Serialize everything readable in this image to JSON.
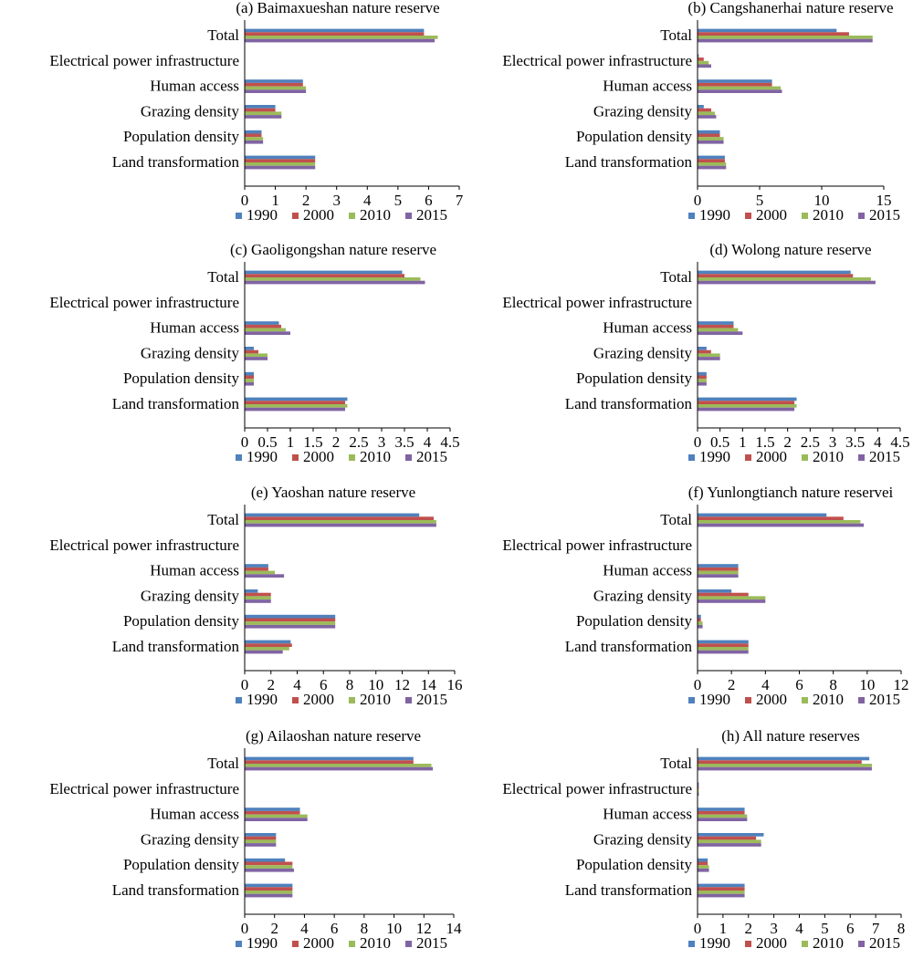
{
  "series_colors": [
    "#4F81BD",
    "#C0504D",
    "#9BBB59",
    "#8064A2"
  ],
  "chart_data": [
    {
      "type": "bar",
      "orientation": "horizontal",
      "title": "(a) Baimaxueshan nature reserve",
      "categories": [
        "Total",
        "Electrical power infrastructure",
        "Human access",
        "Grazing density",
        "Population density",
        "Land transformation"
      ],
      "series": [
        {
          "name": "1990",
          "values": [
            5.85,
            0,
            1.9,
            1.0,
            0.55,
            2.3
          ]
        },
        {
          "name": "2000",
          "values": [
            5.85,
            0,
            1.9,
            1.0,
            0.55,
            2.3
          ]
        },
        {
          "name": "2010",
          "values": [
            6.3,
            0,
            2.0,
            1.2,
            0.6,
            2.3
          ]
        },
        {
          "name": "2015",
          "values": [
            6.2,
            0,
            2.0,
            1.2,
            0.6,
            2.3
          ]
        }
      ],
      "xlim": [
        0,
        7
      ],
      "ticks": [
        0,
        1,
        2,
        3,
        4,
        5,
        6,
        7
      ],
      "tick_labels": [
        "0",
        "1",
        "2",
        "3",
        "4",
        "5",
        "6",
        "7"
      ]
    },
    {
      "type": "bar",
      "orientation": "horizontal",
      "title": "(b) Cangshanerhai nature reserve",
      "categories": [
        "Total",
        "Electrical power infrastructure",
        "Human access",
        "Grazing density",
        "Population density",
        "Land transformation"
      ],
      "series": [
        {
          "name": "1990",
          "values": [
            11.2,
            0.1,
            6.0,
            0.5,
            1.8,
            2.2
          ]
        },
        {
          "name": "2000",
          "values": [
            12.2,
            0.5,
            6.0,
            1.1,
            1.8,
            2.2
          ]
        },
        {
          "name": "2010",
          "values": [
            14.1,
            0.9,
            6.7,
            1.4,
            2.1,
            2.3
          ]
        },
        {
          "name": "2015",
          "values": [
            14.1,
            1.1,
            6.8,
            1.5,
            2.1,
            2.3
          ]
        }
      ],
      "xlim": [
        0,
        15
      ],
      "ticks": [
        0,
        5,
        10,
        15
      ],
      "tick_labels": [
        "0",
        "5",
        "10",
        "15"
      ]
    },
    {
      "type": "bar",
      "orientation": "horizontal",
      "title": "(c) Gaoligongshan nature reserve",
      "categories": [
        "Total",
        "Electrical power infrastructure",
        "Human access",
        "Grazing density",
        "Population density",
        "Land transformation"
      ],
      "series": [
        {
          "name": "1990",
          "values": [
            3.45,
            0,
            0.75,
            0.2,
            0.2,
            2.25
          ]
        },
        {
          "name": "2000",
          "values": [
            3.5,
            0,
            0.8,
            0.3,
            0.2,
            2.2
          ]
        },
        {
          "name": "2010",
          "values": [
            3.85,
            0,
            0.9,
            0.5,
            0.2,
            2.25
          ]
        },
        {
          "name": "2015",
          "values": [
            3.95,
            0,
            1.0,
            0.5,
            0.2,
            2.2
          ]
        }
      ],
      "xlim": [
        0,
        4.5
      ],
      "ticks": [
        0,
        0.5,
        1,
        1.5,
        2,
        2.5,
        3,
        3.5,
        4,
        4.5
      ],
      "tick_labels": [
        "0",
        "0.5",
        "1",
        "1.5",
        "2",
        "2.5",
        "3",
        "3.5",
        "4",
        "4.5"
      ]
    },
    {
      "type": "bar",
      "orientation": "horizontal",
      "title": "(d) Wolong nature reserve",
      "categories": [
        "Total",
        "Electrical power infrastructure",
        "Human access",
        "Grazing density",
        "Population density",
        "Land transformation"
      ],
      "series": [
        {
          "name": "1990",
          "values": [
            3.4,
            0,
            0.8,
            0.2,
            0.2,
            2.2
          ]
        },
        {
          "name": "2000",
          "values": [
            3.45,
            0,
            0.8,
            0.3,
            0.2,
            2.15
          ]
        },
        {
          "name": "2010",
          "values": [
            3.85,
            0,
            0.9,
            0.5,
            0.2,
            2.2
          ]
        },
        {
          "name": "2015",
          "values": [
            3.95,
            0,
            1.0,
            0.5,
            0.2,
            2.15
          ]
        }
      ],
      "xlim": [
        0,
        4.5
      ],
      "ticks": [
        0,
        0.5,
        1,
        1.5,
        2,
        2.5,
        3,
        3.5,
        4,
        4.5
      ],
      "tick_labels": [
        "0",
        "0.5",
        "1",
        "1.5",
        "2",
        "2.5",
        "3",
        "3.5",
        "4",
        "4.5"
      ]
    },
    {
      "type": "bar",
      "orientation": "horizontal",
      "title": "(e) Yaoshan nature reserve",
      "categories": [
        "Total",
        "Electrical power infrastructure",
        "Human access",
        "Grazing density",
        "Population density",
        "Land transformation"
      ],
      "series": [
        {
          "name": "1990",
          "values": [
            13.3,
            0,
            1.8,
            1.0,
            6.9,
            3.5
          ]
        },
        {
          "name": "2000",
          "values": [
            14.4,
            0,
            1.8,
            2.0,
            6.9,
            3.6
          ]
        },
        {
          "name": "2010",
          "values": [
            14.6,
            0,
            2.3,
            2.0,
            6.9,
            3.4
          ]
        },
        {
          "name": "2015",
          "values": [
            14.6,
            0,
            3.0,
            2.0,
            6.9,
            2.9
          ]
        }
      ],
      "xlim": [
        0,
        16
      ],
      "ticks": [
        0,
        2,
        4,
        6,
        8,
        10,
        12,
        14,
        16
      ],
      "tick_labels": [
        "0",
        "2",
        "4",
        "6",
        "8",
        "10",
        "12",
        "14",
        "16"
      ]
    },
    {
      "type": "bar",
      "orientation": "horizontal",
      "title": "(f) Yunlongtianch nature reservei",
      "categories": [
        "Total",
        "Electrical power infrastructure",
        "Human access",
        "Grazing density",
        "Population density",
        "Land transformation"
      ],
      "series": [
        {
          "name": "1990",
          "values": [
            7.6,
            0,
            2.4,
            2.0,
            0.2,
            3.0
          ]
        },
        {
          "name": "2000",
          "values": [
            8.6,
            0,
            2.4,
            3.0,
            0.2,
            3.0
          ]
        },
        {
          "name": "2010",
          "values": [
            9.6,
            0,
            2.4,
            4.0,
            0.3,
            3.0
          ]
        },
        {
          "name": "2015",
          "values": [
            9.8,
            0,
            2.4,
            4.0,
            0.3,
            3.0
          ]
        }
      ],
      "xlim": [
        0,
        12
      ],
      "ticks": [
        0,
        2,
        4,
        6,
        8,
        10,
        12
      ],
      "tick_labels": [
        "0",
        "2",
        "4",
        "6",
        "8",
        "10",
        "12"
      ]
    },
    {
      "type": "bar",
      "orientation": "horizontal",
      "title": "(g) Ailaoshan nature reserve",
      "categories": [
        "Total",
        "Electrical power infrastructure",
        "Human access",
        "Grazing density",
        "Population density",
        "Land transformation"
      ],
      "series": [
        {
          "name": "1990",
          "values": [
            11.3,
            0,
            3.7,
            2.1,
            2.7,
            3.2
          ]
        },
        {
          "name": "2000",
          "values": [
            11.3,
            0,
            3.7,
            2.1,
            3.2,
            3.2
          ]
        },
        {
          "name": "2010",
          "values": [
            12.5,
            0,
            4.2,
            2.1,
            3.2,
            3.2
          ]
        },
        {
          "name": "2015",
          "values": [
            12.6,
            0,
            4.2,
            2.1,
            3.3,
            3.2
          ]
        }
      ],
      "xlim": [
        0,
        14
      ],
      "ticks": [
        0,
        2,
        4,
        6,
        8,
        10,
        12,
        14
      ],
      "tick_labels": [
        "0",
        "2",
        "4",
        "6",
        "8",
        "10",
        "12",
        "14"
      ]
    },
    {
      "type": "bar",
      "orientation": "horizontal",
      "title": "(h) All nature reserves",
      "categories": [
        "Total",
        "Electrical power infrastructure",
        "Human access",
        "Grazing density",
        "Population density",
        "Land transformation"
      ],
      "series": [
        {
          "name": "1990",
          "values": [
            6.75,
            0.05,
            1.85,
            2.6,
            0.4,
            1.85
          ]
        },
        {
          "name": "2000",
          "values": [
            6.45,
            0.05,
            1.85,
            2.3,
            0.4,
            1.85
          ]
        },
        {
          "name": "2010",
          "values": [
            6.85,
            0.05,
            1.95,
            2.5,
            0.45,
            1.85
          ]
        },
        {
          "name": "2015",
          "values": [
            6.85,
            0.05,
            1.95,
            2.5,
            0.45,
            1.85
          ]
        }
      ],
      "xlim": [
        0,
        8
      ],
      "ticks": [
        0,
        1,
        2,
        3,
        4,
        5,
        6,
        7,
        8
      ],
      "tick_labels": [
        "0",
        "1",
        "2",
        "3",
        "4",
        "5",
        "6",
        "7",
        "8"
      ]
    }
  ]
}
